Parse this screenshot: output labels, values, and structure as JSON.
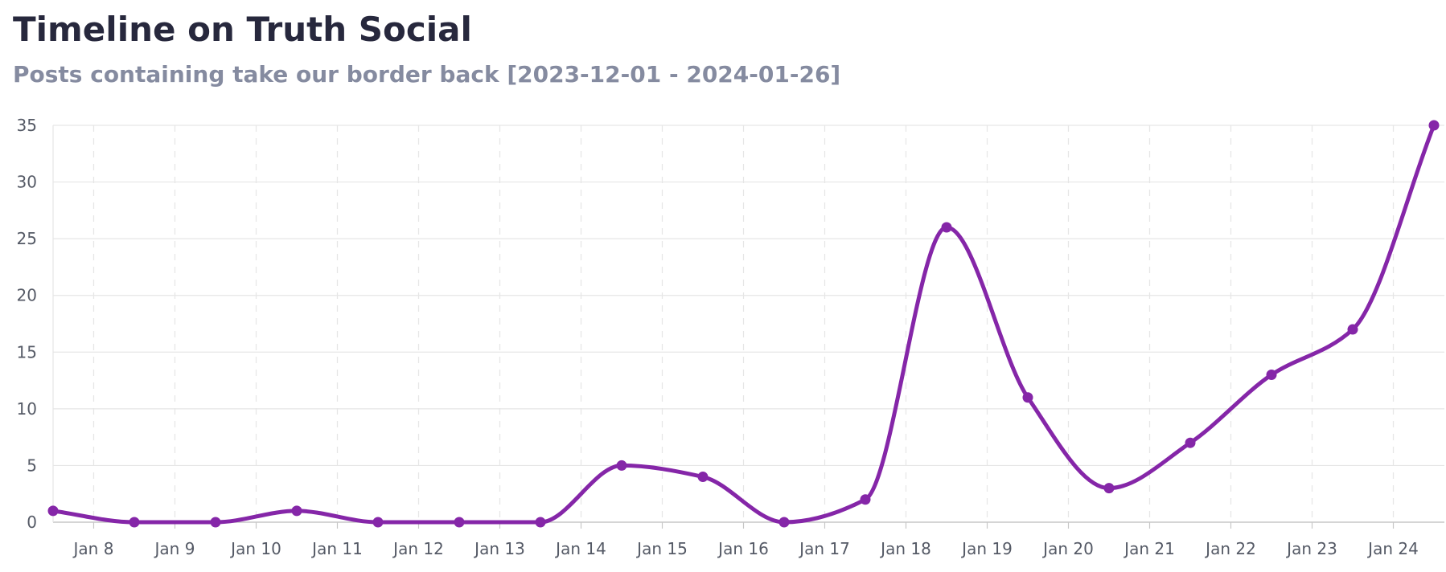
{
  "header": {
    "title": "Timeline on Truth Social",
    "subtitle": "Posts containing take our border back [2023-12-01 - 2024-01-26]"
  },
  "chart_data": {
    "type": "line",
    "title": "Timeline on Truth Social",
    "subtitle": "Posts containing take our border back [2023-12-01 - 2024-01-26]",
    "xlabel": "",
    "ylabel": "",
    "x": [
      "2024-01-07",
      "2024-01-08",
      "2024-01-09",
      "2024-01-10",
      "2024-01-11",
      "2024-01-12",
      "2024-01-13",
      "2024-01-14",
      "2024-01-15",
      "2024-01-16",
      "2024-01-17",
      "2024-01-18",
      "2024-01-19",
      "2024-01-20",
      "2024-01-21",
      "2024-01-22",
      "2024-01-23",
      "2024-01-24"
    ],
    "series": [
      {
        "values": [
          1,
          0,
          0,
          1,
          0,
          0,
          0,
          5,
          4,
          0,
          2,
          26,
          11,
          3,
          7,
          13,
          17,
          35
        ]
      }
    ],
    "x_tick_labels": [
      "Jan 8",
      "Jan 9",
      "Jan 10",
      "Jan 11",
      "Jan 12",
      "Jan 13",
      "Jan 14",
      "Jan 15",
      "Jan 16",
      "Jan 17",
      "Jan 18",
      "Jan 19",
      "Jan 20",
      "Jan 21",
      "Jan 22",
      "Jan 23",
      "Jan 24"
    ],
    "y_ticks": [
      0,
      5,
      10,
      15,
      20,
      25,
      30,
      35
    ],
    "ylim": [
      0,
      35
    ],
    "grid": true,
    "colors": {
      "line": "#8526a8",
      "grid": "#e6e6e6",
      "axis": "#c7c7c7"
    }
  }
}
